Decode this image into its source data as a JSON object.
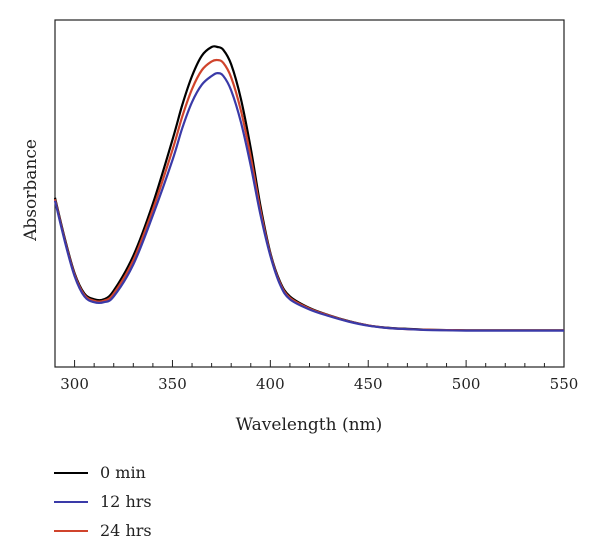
{
  "chart_data": {
    "type": "line",
    "title": "",
    "xlabel": "Wavelength (nm)",
    "ylabel": "Absorbance",
    "xlim": [
      290,
      550
    ],
    "ylim": [
      0,
      1
    ],
    "x_ticks": [
      300,
      350,
      400,
      450,
      500,
      550
    ],
    "y_ticks": [],
    "grid": false,
    "legend_position": "bottom-left",
    "series": [
      {
        "name": "0 min",
        "color": "#000000",
        "x": [
          290,
          295,
          300,
          305,
          310,
          315,
          320,
          330,
          340,
          350,
          355,
          360,
          365,
          370,
          373,
          376,
          380,
          385,
          390,
          395,
          400,
          405,
          410,
          420,
          430,
          440,
          450,
          460,
          470,
          480,
          490,
          500,
          520,
          550
        ],
        "y": [
          0.48,
          0.34,
          0.22,
          0.15,
          0.13,
          0.13,
          0.16,
          0.28,
          0.46,
          0.68,
          0.8,
          0.9,
          0.97,
          1.0,
          1.0,
          0.99,
          0.94,
          0.82,
          0.65,
          0.45,
          0.29,
          0.19,
          0.14,
          0.1,
          0.075,
          0.055,
          0.04,
          0.032,
          0.028,
          0.025,
          0.024,
          0.023,
          0.023,
          0.023
        ]
      },
      {
        "name": "12 hrs",
        "color": "#3a3aa8",
        "x": [
          290,
          295,
          300,
          305,
          310,
          315,
          320,
          330,
          340,
          350,
          355,
          360,
          365,
          370,
          373,
          376,
          380,
          385,
          390,
          395,
          400,
          405,
          410,
          420,
          430,
          440,
          450,
          460,
          470,
          480,
          490,
          500,
          520,
          550
        ],
        "y": [
          0.47,
          0.33,
          0.21,
          0.14,
          0.12,
          0.12,
          0.14,
          0.25,
          0.42,
          0.61,
          0.72,
          0.81,
          0.87,
          0.9,
          0.91,
          0.9,
          0.85,
          0.74,
          0.59,
          0.42,
          0.28,
          0.18,
          0.13,
          0.095,
          0.072,
          0.053,
          0.039,
          0.031,
          0.027,
          0.024,
          0.023,
          0.022,
          0.022,
          0.022
        ]
      },
      {
        "name": "24 hrs",
        "color": "#d0442c",
        "x": [
          290,
          295,
          300,
          305,
          310,
          315,
          320,
          330,
          340,
          350,
          355,
          360,
          365,
          370,
          373,
          376,
          380,
          385,
          390,
          395,
          400,
          405,
          410,
          420,
          430,
          440,
          450,
          460,
          470,
          480,
          490,
          500,
          520,
          550
        ],
        "y": [
          0.475,
          0.335,
          0.215,
          0.145,
          0.125,
          0.125,
          0.15,
          0.265,
          0.44,
          0.645,
          0.76,
          0.855,
          0.92,
          0.95,
          0.955,
          0.945,
          0.895,
          0.78,
          0.62,
          0.435,
          0.285,
          0.185,
          0.135,
          0.098,
          0.074,
          0.054,
          0.04,
          0.031,
          0.027,
          0.025,
          0.024,
          0.023,
          0.023,
          0.023
        ]
      }
    ]
  }
}
